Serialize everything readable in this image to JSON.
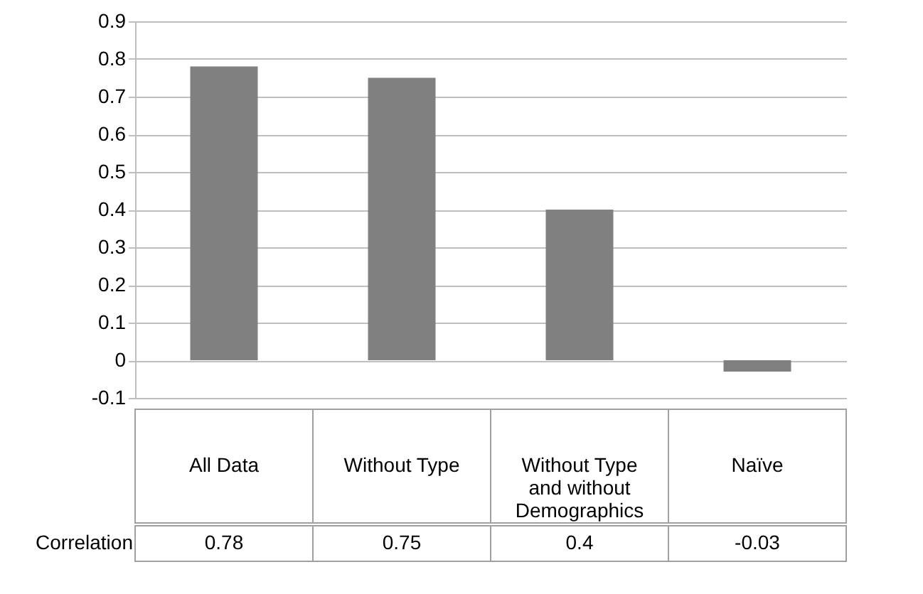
{
  "chart_data": {
    "type": "bar",
    "categories": [
      "All Data",
      "Without Type",
      "Without Type and without Demographics",
      "Naïve"
    ],
    "series": [
      {
        "name": "Correlation",
        "color": "#808080",
        "values": [
          0.78,
          0.75,
          0.4,
          -0.03
        ]
      }
    ],
    "ylim": [
      -0.1,
      0.9
    ],
    "yticks": [
      -0.1,
      0,
      0.1,
      0.2,
      0.3,
      0.4,
      0.5,
      0.6,
      0.7,
      0.8,
      0.9
    ],
    "grid": "y",
    "data_labels": true
  }
}
